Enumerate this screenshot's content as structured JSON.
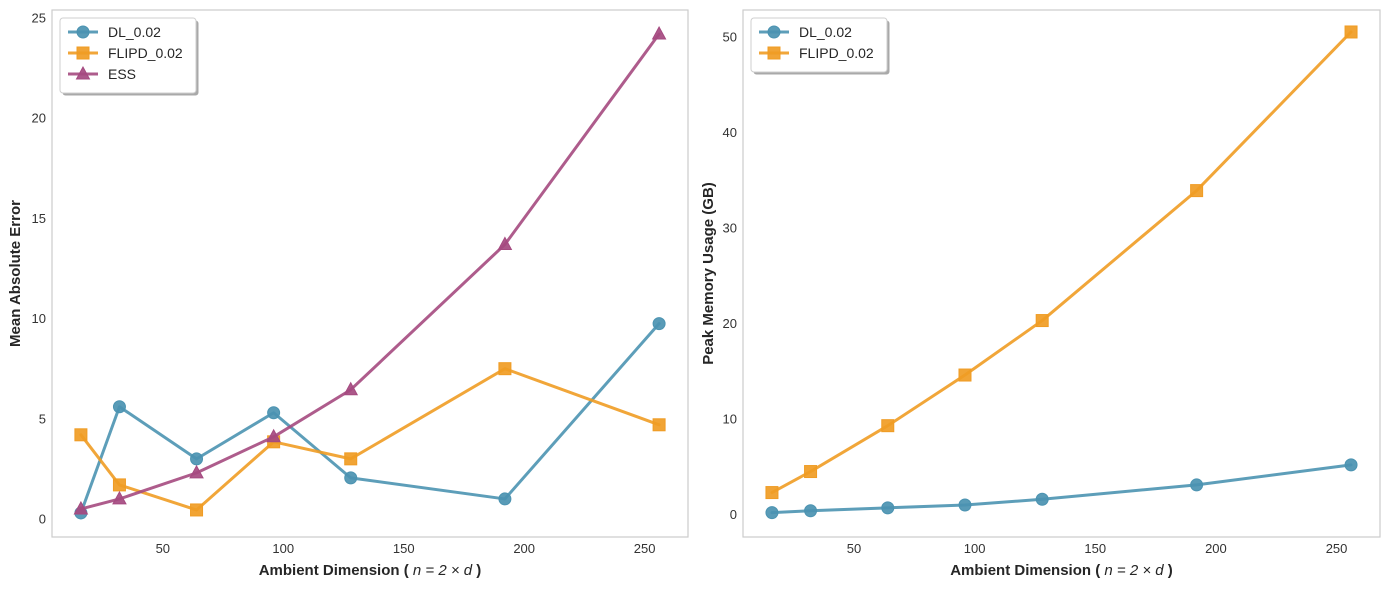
{
  "chart_data": [
    {
      "type": "line",
      "title": "",
      "xlabel": "Ambient Dimension ( n = 2 × d )",
      "xlabel_parts": {
        "prefix": "Ambient Dimension ( ",
        "math": "n = 2 × d",
        "suffix": " )"
      },
      "ylabel": "Mean Absolute Error",
      "xlim": [
        4,
        268
      ],
      "ylim": [
        -0.9,
        25.4
      ],
      "xticks": [
        50,
        100,
        150,
        200,
        250
      ],
      "yticks": [
        0,
        5,
        10,
        15,
        20,
        25
      ],
      "grid": true,
      "legend_position": "top-left",
      "series": [
        {
          "name": "DL_0.02",
          "color": "#4b93b1",
          "marker": "circle",
          "x": [
            16,
            32,
            64,
            96,
            128,
            192,
            256
          ],
          "y": [
            0.3,
            5.6,
            3.0,
            5.3,
            2.05,
            1.0,
            9.75
          ]
        },
        {
          "name": "FLIPD_0.02",
          "color": "#f09c24",
          "marker": "square",
          "x": [
            16,
            32,
            64,
            96,
            128,
            192,
            256
          ],
          "y": [
            4.2,
            1.7,
            0.45,
            3.85,
            3.0,
            7.5,
            4.7
          ]
        },
        {
          "name": "ESS",
          "color": "#a54a80",
          "marker": "triangle",
          "x": [
            16,
            32,
            64,
            96,
            128,
            192,
            256
          ],
          "y": [
            0.5,
            1.0,
            2.3,
            4.1,
            6.45,
            13.7,
            24.2
          ]
        }
      ]
    },
    {
      "type": "line",
      "title": "",
      "xlabel": "Ambient Dimension ( n = 2 × d )",
      "xlabel_parts": {
        "prefix": "Ambient Dimension ( ",
        "math": "n = 2 × d",
        "suffix": " )"
      },
      "ylabel": "Peak Memory Usage (GB)",
      "xlim": [
        4,
        268
      ],
      "ylim": [
        -2.35,
        52.8
      ],
      "xticks": [
        50,
        100,
        150,
        200,
        250
      ],
      "yticks": [
        0,
        10,
        20,
        30,
        40,
        50
      ],
      "grid": true,
      "legend_position": "top-left",
      "series": [
        {
          "name": "DL_0.02",
          "color": "#4b93b1",
          "marker": "circle",
          "x": [
            16,
            32,
            64,
            96,
            128,
            192,
            256
          ],
          "y": [
            0.2,
            0.4,
            0.7,
            1.0,
            1.6,
            3.1,
            5.2
          ]
        },
        {
          "name": "FLIPD_0.02",
          "color": "#f09c24",
          "marker": "square",
          "x": [
            16,
            32,
            64,
            96,
            128,
            192,
            256
          ],
          "y": [
            2.3,
            4.5,
            9.3,
            14.6,
            20.3,
            33.9,
            50.5
          ]
        }
      ]
    }
  ]
}
